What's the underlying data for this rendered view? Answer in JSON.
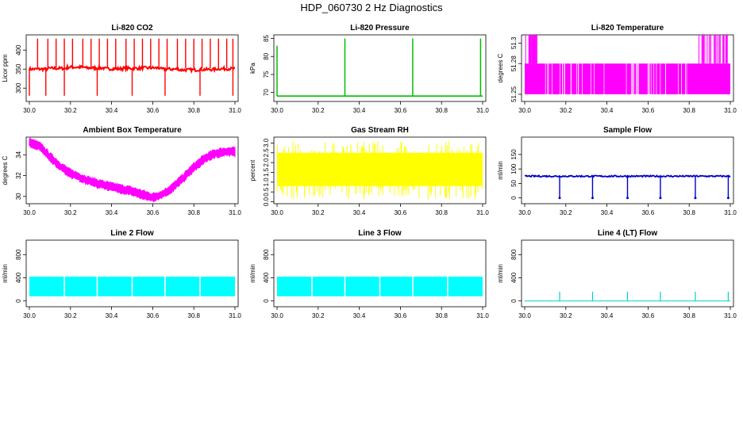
{
  "page_title": "HDP_060730  2 Hz Diagnostics",
  "chart_data": [
    {
      "type": "line",
      "title": "Li-820 CO2",
      "ylabel": "Licor ppm",
      "color": "#ff0000",
      "xlim": [
        30.0,
        31.0
      ],
      "ylim": [
        265,
        440
      ],
      "xticks": [
        "30.0",
        "30.2",
        "30.4",
        "30.6",
        "30.8",
        "31.0"
      ],
      "yticks": [
        300,
        350,
        400
      ],
      "series": {
        "baseline": [
          350,
          352,
          355,
          353,
          351,
          352,
          353,
          350,
          348,
          349,
          351,
          350
        ],
        "spikes_up_x": [
          30.04,
          30.09,
          30.13,
          30.17,
          30.21,
          30.26,
          30.3,
          30.34,
          30.38,
          30.42,
          30.47,
          30.51,
          30.55,
          30.59,
          30.63,
          30.67,
          30.72,
          30.76,
          30.8,
          30.84,
          30.88,
          30.92,
          30.96,
          30.99
        ],
        "spikes_up_y": 430,
        "spikes_down_x": [
          30.0,
          30.08,
          30.17,
          30.33,
          30.5,
          30.66,
          30.83,
          30.99
        ],
        "spikes_down_y": 280
      }
    },
    {
      "type": "line",
      "title": "Li-820 Pressure",
      "ylabel": "kPa",
      "color": "#00c000",
      "xlim": [
        30.0,
        31.0
      ],
      "ylim": [
        67.5,
        86
      ],
      "xticks": [
        "30.0",
        "30.2",
        "30.4",
        "30.6",
        "30.8",
        "31.0"
      ],
      "yticks": [
        70,
        75,
        80,
        85
      ],
      "series": {
        "baseline": 69,
        "spikes_x": [
          30.0,
          30.33,
          30.66,
          30.99
        ],
        "spikes_y": [
          83,
          85,
          85,
          85
        ]
      }
    },
    {
      "type": "band",
      "title": "Li-820 Temperature",
      "ylabel": "degrees C",
      "color": "#ff00ff",
      "xlim": [
        30.0,
        31.0
      ],
      "ylim": [
        51.243,
        51.308
      ],
      "xticks": [
        "30.0",
        "30.2",
        "30.4",
        "30.6",
        "30.8",
        "31.0"
      ],
      "yticks": [
        "51.25",
        "51.28",
        "51.3"
      ],
      "series": {
        "low": 51.25,
        "high": 51.28,
        "top": 51.308,
        "burst_ranges": [
          [
            30.0,
            30.06
          ],
          [
            30.83,
            31.0
          ]
        ]
      }
    },
    {
      "type": "band",
      "title": "Ambient Box Temperature",
      "ylabel": "degrees C",
      "color": "#ff00ff",
      "xlim": [
        30.0,
        31.0
      ],
      "ylim": [
        29.3,
        35.7
      ],
      "xticks": [
        "30.0",
        "30.2",
        "30.4",
        "30.6",
        "30.8",
        "31.0"
      ],
      "yticks": [
        30,
        32,
        34
      ],
      "series": {
        "x": [
          30.0,
          30.05,
          30.1,
          30.15,
          30.2,
          30.3,
          30.4,
          30.5,
          30.55,
          30.6,
          30.65,
          30.7,
          30.75,
          30.8,
          30.85,
          30.9,
          30.95,
          31.0
        ],
        "y": [
          35.2,
          34.8,
          33.8,
          32.9,
          32.2,
          31.4,
          30.9,
          30.5,
          30.2,
          29.9,
          30.2,
          30.9,
          31.8,
          32.8,
          33.6,
          34.1,
          34.3,
          34.3
        ],
        "half_width": 0.35
      }
    },
    {
      "type": "band",
      "title": "Gas Stream RH",
      "ylabel": "percent",
      "color": "#ffff00",
      "xlim": [
        30.0,
        31.0
      ],
      "ylim": [
        -0.1,
        3.3
      ],
      "xticks": [
        "30.0",
        "30.2",
        "30.4",
        "30.6",
        "30.8",
        "31.0"
      ],
      "yticks": [
        "0.0",
        "0.5",
        "1.0",
        "1.5",
        "2.0",
        "2.5",
        "3.0"
      ],
      "series": {
        "low": 0.8,
        "high": 2.5,
        "min": 0.1,
        "max": 3.1
      }
    },
    {
      "type": "line",
      "title": "Sample Flow",
      "ylabel": "ml/min",
      "color": "#0000cc",
      "xlim": [
        30.0,
        31.0
      ],
      "ylim": [
        -20,
        210
      ],
      "xticks": [
        "30.0",
        "30.2",
        "30.4",
        "30.6",
        "30.8",
        "31.0"
      ],
      "yticks": [
        0,
        50,
        100,
        150
      ],
      "series": {
        "baseline": 75,
        "dips_x": [
          30.17,
          30.33,
          30.5,
          30.66,
          30.83,
          30.99
        ],
        "dips_y": 0
      }
    },
    {
      "type": "band",
      "title": "Line 2 Flow",
      "ylabel": "ml/min",
      "color": "#00ffff",
      "xlim": [
        30.0,
        31.0
      ],
      "ylim": [
        -100,
        1050
      ],
      "xticks": [
        "30.0",
        "30.2",
        "30.4",
        "30.6",
        "30.8",
        "31.0"
      ],
      "yticks": [
        0,
        400,
        800
      ],
      "series": {
        "low": 80,
        "high": 420,
        "gaps_x": [
          30.17,
          30.33,
          30.5,
          30.66,
          30.83
        ]
      }
    },
    {
      "type": "band",
      "title": "Line 3 Flow",
      "ylabel": "ml/min",
      "color": "#00ffff",
      "xlim": [
        30.0,
        31.0
      ],
      "ylim": [
        -100,
        1050
      ],
      "xticks": [
        "30.0",
        "30.2",
        "30.4",
        "30.6",
        "30.8",
        "31.0"
      ],
      "yticks": [
        0,
        400,
        800
      ],
      "series": {
        "low": 80,
        "high": 420,
        "gaps_x": [
          30.17,
          30.33,
          30.5,
          30.66,
          30.83
        ]
      }
    },
    {
      "type": "line",
      "title": "Line 4 (LT) Flow",
      "ylabel": "ml/min",
      "color": "#00d0d0",
      "xlim": [
        30.0,
        31.0
      ],
      "ylim": [
        -100,
        1050
      ],
      "xticks": [
        "30.0",
        "30.2",
        "30.4",
        "30.6",
        "30.8",
        "31.0"
      ],
      "yticks": [
        0,
        400,
        800
      ],
      "series": {
        "baseline": 0,
        "spikes_x": [
          30.17,
          30.33,
          30.5,
          30.66,
          30.83,
          30.99
        ],
        "spikes_y": 160
      }
    }
  ]
}
